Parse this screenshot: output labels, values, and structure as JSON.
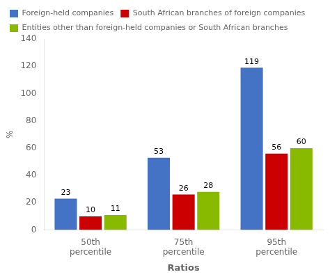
{
  "chart_data": {
    "type": "bar",
    "categories": [
      "50th\npercentile",
      "75th\npercentile",
      "95th\npercentile"
    ],
    "series": [
      {
        "name": "Foreign-held companies",
        "color": "#4472C4",
        "values": [
          23,
          53,
          119
        ]
      },
      {
        "name": "South African branches of foreign companies",
        "color": "#CC0000",
        "values": [
          10,
          26,
          56
        ]
      },
      {
        "name": "Entities other than foreign-held companies or South African branches",
        "color": "#88BB00",
        "values": [
          11,
          28,
          60
        ]
      }
    ],
    "xlabel": "Ratios",
    "ylabel": "%",
    "ylim": [
      0,
      140
    ],
    "yticks": [
      0,
      20,
      40,
      60,
      80,
      100,
      120,
      140
    ],
    "grid": false,
    "legend": "upper left",
    "data_labels": true
  }
}
